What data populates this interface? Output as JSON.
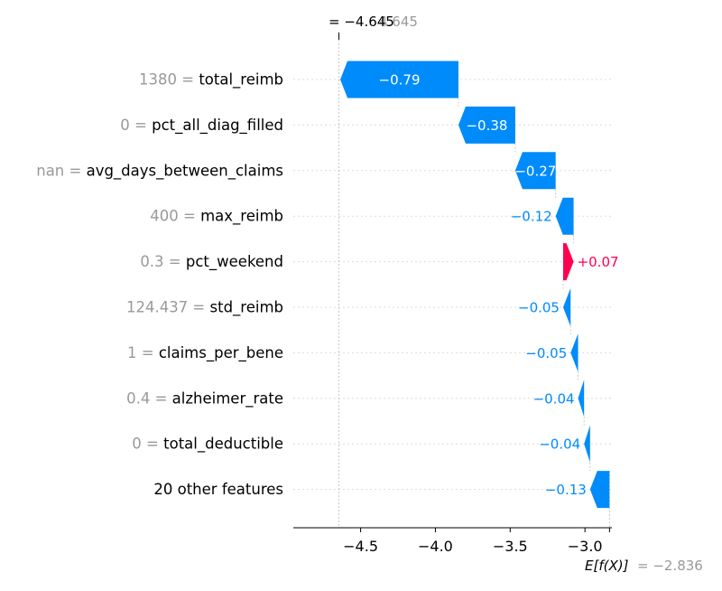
{
  "chart_data": {
    "type": "waterfall",
    "fx_label": "= −4.645",
    "fx_label_ghost": "4.645",
    "fx_value": -4.645,
    "base_label_prefix": "E[f(X)]",
    "base_label_value": "= −2.836",
    "base_value": -2.836,
    "xlim": [
      -4.95,
      -2.82
    ],
    "xticks": [
      {
        "value": -4.5,
        "label": "−4.5"
      },
      {
        "value": -4.0,
        "label": "−4.0"
      },
      {
        "value": -3.5,
        "label": "−3.5"
      },
      {
        "value": -3.0,
        "label": "−3.0"
      }
    ],
    "rows": [
      {
        "feature_value": "1380 =",
        "feature_name": "total_reimb",
        "value": -0.79,
        "label": "−0.79",
        "label_inside": true
      },
      {
        "feature_value": "0 =",
        "feature_name": "pct_all_diag_filled",
        "value": -0.38,
        "label": "−0.38",
        "label_inside": true
      },
      {
        "feature_value": "nan =",
        "feature_name": "avg_days_between_claims",
        "value": -0.27,
        "label": "−0.27",
        "label_inside": true
      },
      {
        "feature_value": "400 =",
        "feature_name": "max_reimb",
        "value": -0.12,
        "label": "−0.12",
        "label_inside": false
      },
      {
        "feature_value": "0.3 =",
        "feature_name": "pct_weekend",
        "value": 0.07,
        "label": "+0.07",
        "label_inside": false
      },
      {
        "feature_value": "124.437 =",
        "feature_name": "std_reimb",
        "value": -0.05,
        "label": "−0.05",
        "label_inside": false
      },
      {
        "feature_value": "1 =",
        "feature_name": "claims_per_bene",
        "value": -0.05,
        "label": "−0.05",
        "label_inside": false
      },
      {
        "feature_value": "0.4 =",
        "feature_name": "alzheimer_rate",
        "value": -0.04,
        "label": "−0.04",
        "label_inside": false
      },
      {
        "feature_value": "0 =",
        "feature_name": "total_deductible",
        "value": -0.04,
        "label": "−0.04",
        "label_inside": false
      },
      {
        "feature_value": "",
        "feature_name": "20 other features",
        "value": -0.13,
        "label": "−0.13",
        "label_inside": false
      }
    ],
    "colors": {
      "negative": "#008bfb",
      "positive": "#ff0051",
      "gray_text": "#999999",
      "text": "#000000",
      "grid": "#cccccc"
    },
    "grid": true
  }
}
